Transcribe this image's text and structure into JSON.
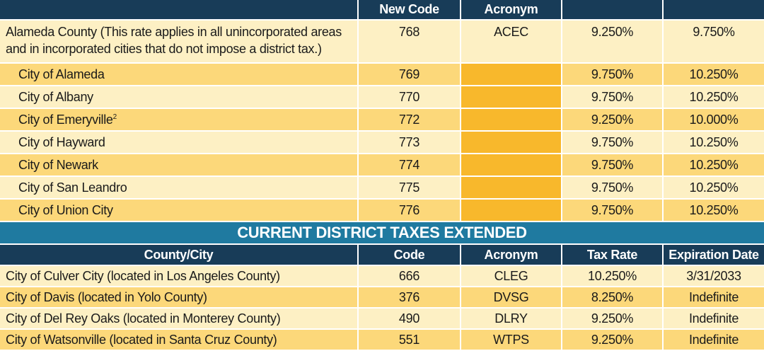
{
  "top_headers": [
    "",
    "New Code",
    "Acronym",
    "",
    ""
  ],
  "county_row": {
    "name": "Alameda County (This rate applies in all unincorporated areas and in incorporated cities that do not impose a district tax.)",
    "code": "768",
    "acronym": "ACEC",
    "rate1": "9.250%",
    "rate2": "9.750%"
  },
  "cities": [
    {
      "name": "City of Alameda",
      "sup": "",
      "code": "769",
      "rate1": "9.750%",
      "rate2": "10.250%"
    },
    {
      "name": "City of Albany",
      "sup": "",
      "code": "770",
      "rate1": "9.750%",
      "rate2": "10.250%"
    },
    {
      "name": "City of Emeryville",
      "sup": "2",
      "code": "772",
      "rate1": "9.250%",
      "rate2": "10.000%"
    },
    {
      "name": "City of Hayward",
      "sup": "",
      "code": "773",
      "rate1": "9.750%",
      "rate2": "10.250%"
    },
    {
      "name": "City of Newark",
      "sup": "",
      "code": "774",
      "rate1": "9.750%",
      "rate2": "10.250%"
    },
    {
      "name": "City of San Leandro",
      "sup": "",
      "code": "775",
      "rate1": "9.750%",
      "rate2": "10.250%"
    },
    {
      "name": "City of Union City",
      "sup": "",
      "code": "776",
      "rate1": "9.750%",
      "rate2": "10.250%"
    }
  ],
  "section_title": "CURRENT DISTRICT TAXES EXTENDED",
  "second_headers": [
    "County/City",
    "Code",
    "Acronym",
    "Tax Rate",
    "Expiration Date"
  ],
  "districts": [
    {
      "name": "City of Culver City (located in Los Angeles County)",
      "code": "666",
      "acronym": "CLEG",
      "rate": "10.250%",
      "expiration": "3/31/2033"
    },
    {
      "name": "City of Davis (located in Yolo County)",
      "code": "376",
      "acronym": "DVSG",
      "rate": "8.250%",
      "expiration": "Indefinite"
    },
    {
      "name": "City of Del Rey Oaks (located in Monterey County)",
      "code": "490",
      "acronym": "DLRY",
      "rate": "9.250%",
      "expiration": "Indefinite"
    },
    {
      "name": "City of Watsonville (located in Santa Cruz County)",
      "code": "551",
      "acronym": "WTPS",
      "rate": "9.250%",
      "expiration": "Indefinite"
    }
  ]
}
